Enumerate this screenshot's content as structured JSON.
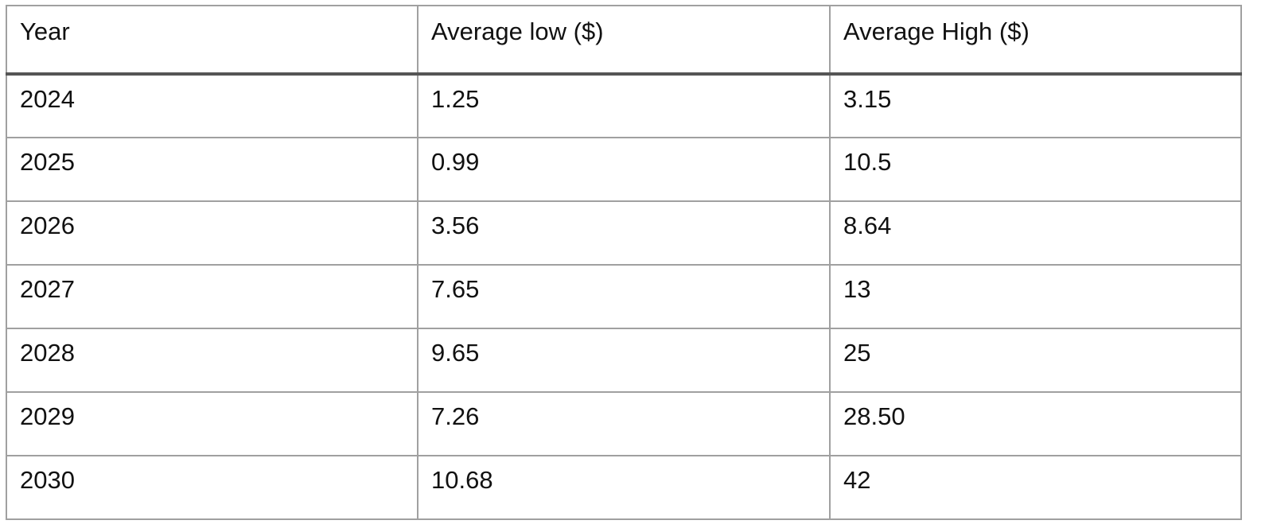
{
  "table": {
    "header": [
      "Year",
      "Average low ($)",
      "Average High ($)"
    ],
    "rows": [
      [
        "2024",
        "1.25",
        "3.15"
      ],
      [
        "2025",
        "0.99",
        "10.5"
      ],
      [
        "2026",
        "3.56",
        "8.64"
      ],
      [
        "2027",
        "7.65",
        "13"
      ],
      [
        "2028",
        "9.65",
        "25"
      ],
      [
        "2029",
        "7.26",
        "28.50"
      ],
      [
        "2030",
        "10.68",
        "42"
      ]
    ]
  }
}
